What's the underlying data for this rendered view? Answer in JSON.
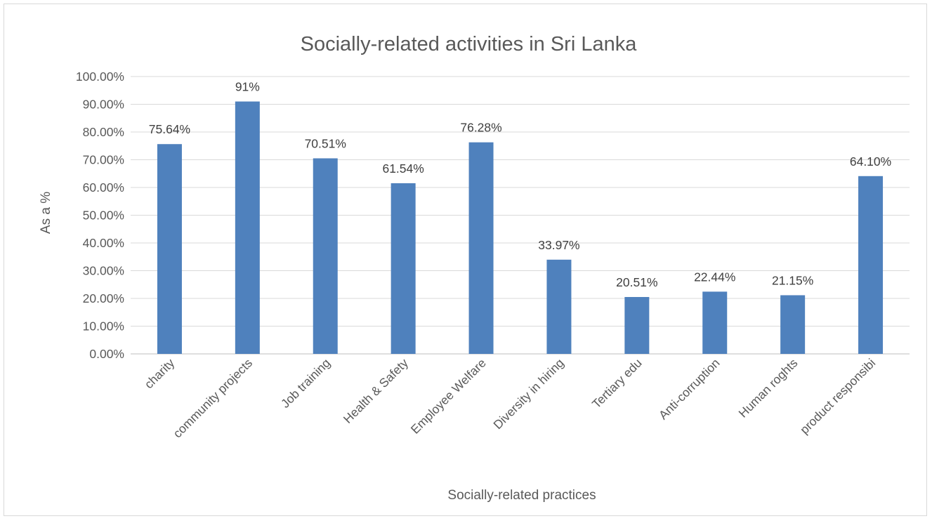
{
  "chart_data": {
    "type": "bar",
    "title": "Socially-related activities in Sri Lanka",
    "xlabel": "Socially-related practices",
    "ylabel": "As a %",
    "categories": [
      "charity",
      "community projects",
      "Job training",
      "Health & Safety",
      "Employee Welfare",
      "Diversity in hiring",
      "Tertiary edu",
      "Anti-corruption",
      "Human roghts",
      "product responsibi"
    ],
    "values": [
      75.64,
      91,
      70.51,
      61.54,
      76.28,
      33.97,
      20.51,
      22.44,
      21.15,
      64.1
    ],
    "data_labels": [
      "75.64%",
      "91%",
      "70.51%",
      "61.54%",
      "76.28%",
      "33.97%",
      "20.51%",
      "22.44%",
      "21.15%",
      "64.10%"
    ],
    "y_ticks": [
      "0.00%",
      "10.00%",
      "20.00%",
      "30.00%",
      "40.00%",
      "50.00%",
      "60.00%",
      "70.00%",
      "80.00%",
      "90.00%",
      "100.00%"
    ],
    "ylim": [
      0,
      100
    ],
    "grid": true,
    "legend": "none",
    "bar_color": "#4f81bd"
  }
}
